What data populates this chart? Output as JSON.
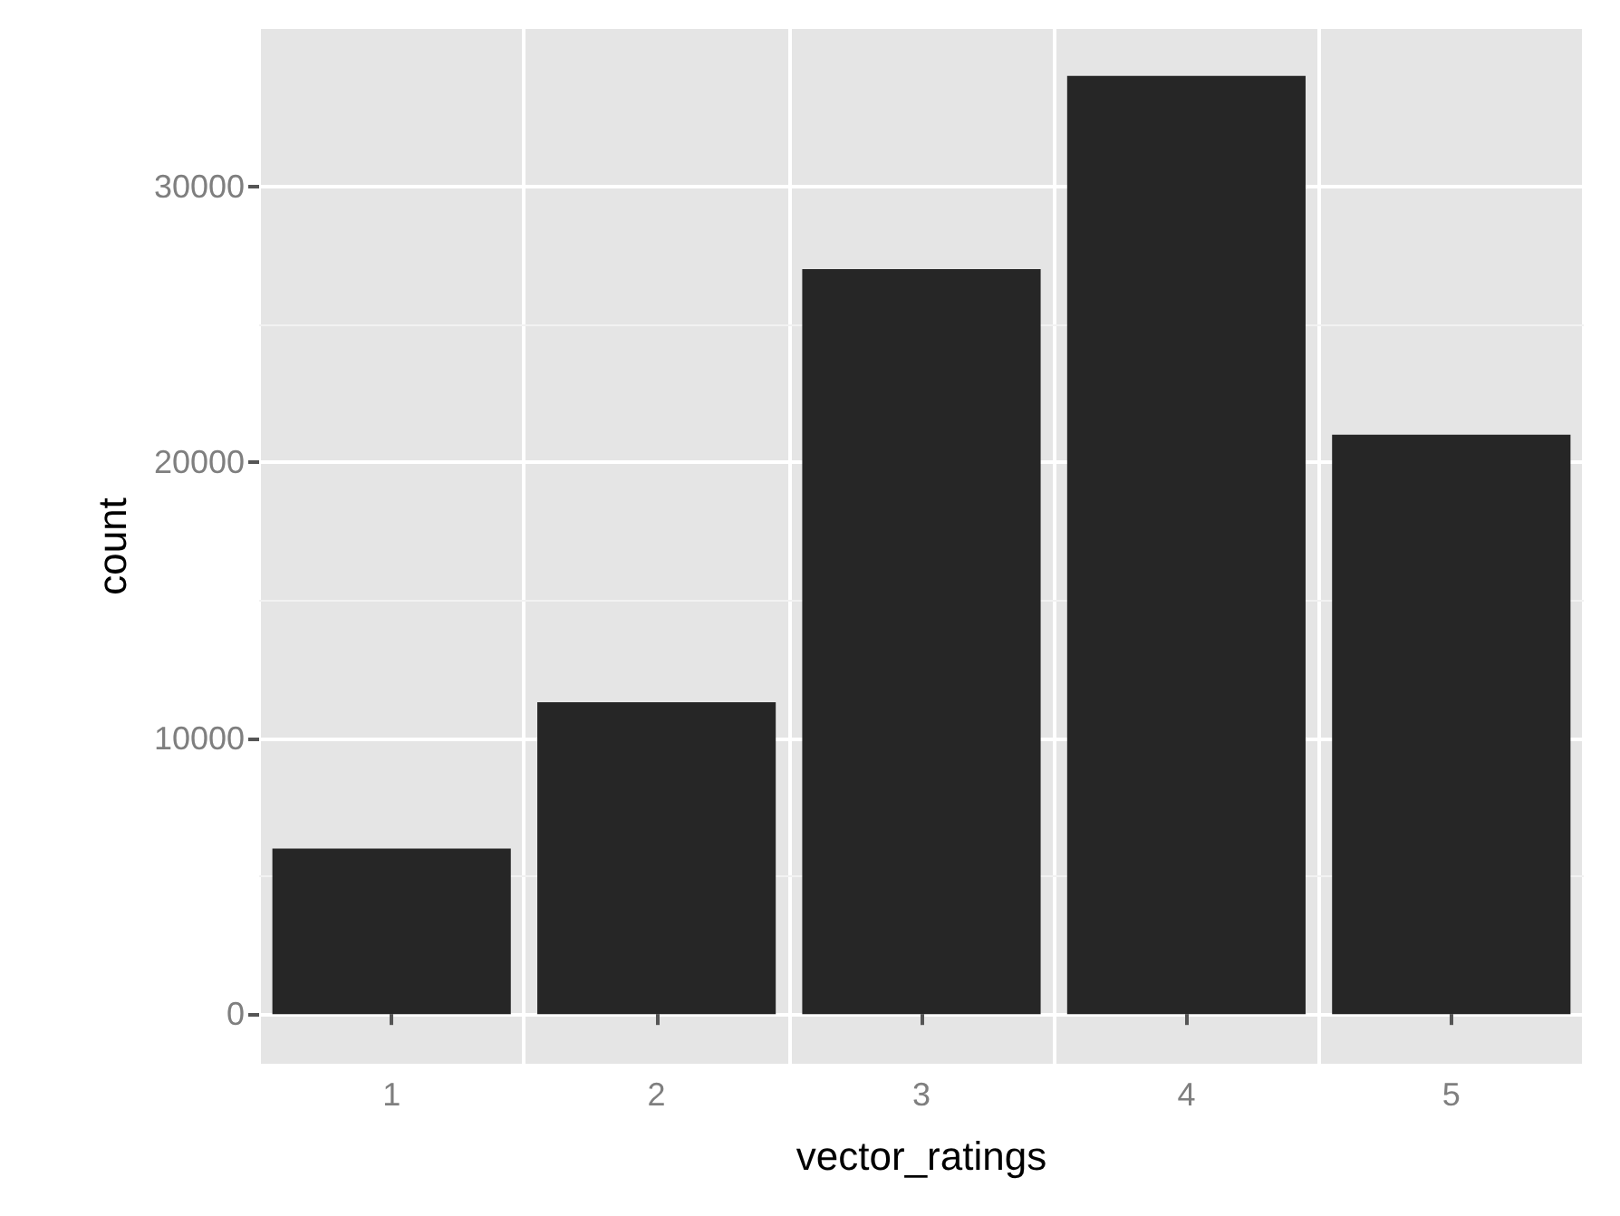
{
  "chart_data": {
    "type": "bar",
    "xlabel": "vector_ratings",
    "ylabel": "count",
    "categories": [
      "1",
      "2",
      "3",
      "4",
      "5"
    ],
    "values": [
      6000,
      11300,
      27000,
      34000,
      21000
    ],
    "color": "#262626",
    "ylim": [
      -1800,
      35700
    ],
    "yticks": [
      0,
      10000,
      20000,
      30000
    ],
    "grid": true
  }
}
